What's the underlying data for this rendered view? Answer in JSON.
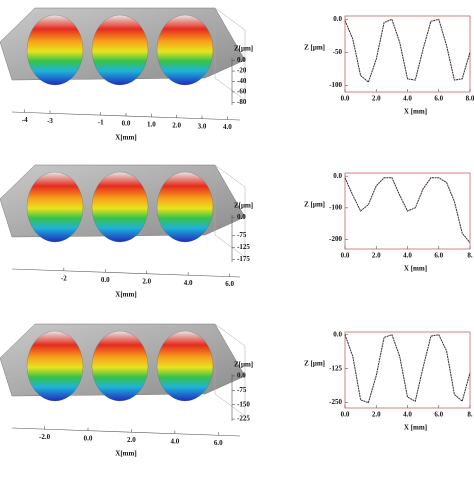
{
  "chart_data": [
    {
      "type": "surface",
      "xlabel": "X[mm]",
      "zlabel": "Z[μm]",
      "xlim": [
        -4.5,
        4.5
      ],
      "zlim": [
        -85,
        5
      ],
      "xticks": [
        {
          "value": -4,
          "label": "-4"
        },
        {
          "value": -3,
          "label": "-3"
        },
        {
          "value": -1,
          "label": "-1"
        },
        {
          "value": 0,
          "label": "0.0"
        },
        {
          "value": 1,
          "label": "1.0"
        },
        {
          "value": 2,
          "label": "2.0"
        },
        {
          "value": 3,
          "label": "3.0"
        },
        {
          "value": 4,
          "label": "4.0"
        }
      ],
      "zticks": [
        {
          "value": 0,
          "label": "0.0"
        },
        -20,
        -40,
        -60,
        -80
      ]
    },
    {
      "type": "line",
      "xlabel": "X [mm]",
      "ylabel": "Z [μm]",
      "xlim": [
        0,
        8
      ],
      "ylim": [
        -110,
        5
      ],
      "xticks": [
        {
          "value": 0,
          "label": "0.0"
        },
        {
          "value": 2,
          "label": "2.0"
        },
        {
          "value": 4,
          "label": "4.0"
        },
        {
          "value": 6,
          "label": "6.0"
        },
        {
          "value": 8,
          "label": "8.0"
        }
      ],
      "yticks": [
        {
          "value": 0,
          "label": "0.0"
        },
        -50,
        -100
      ],
      "x": [
        0,
        0.5,
        1,
        1.5,
        2,
        2.5,
        3,
        3.5,
        4,
        4.5,
        5,
        5.5,
        6,
        6.5,
        7,
        7.5,
        8
      ],
      "values": [
        -2,
        -30,
        -85,
        -95,
        -60,
        -5,
        0,
        -35,
        -90,
        -92,
        -45,
        -3,
        0,
        -40,
        -92,
        -90,
        -50
      ],
      "color": "#3a2a2a"
    },
    {
      "type": "surface",
      "xlabel": "X[mm]",
      "zlabel": "Z[μm]",
      "xlim": [
        -4.5,
        6.5
      ],
      "zlim": [
        -185,
        10
      ],
      "xticks": [
        {
          "value": -2,
          "label": "-2"
        },
        {
          "value": 0,
          "label": "0.0"
        },
        {
          "value": 2,
          "label": "2.0"
        },
        {
          "value": 4,
          "label": "4.0"
        },
        {
          "value": 6,
          "label": "6.0"
        }
      ],
      "zticks": [
        {
          "value": 0,
          "label": "0.0"
        },
        -75,
        -125,
        -175
      ]
    },
    {
      "type": "line",
      "xlabel": "X [mm]",
      "ylabel": "Z [μm]",
      "xlim": [
        0,
        8
      ],
      "ylim": [
        -230,
        10
      ],
      "xticks": [
        {
          "value": 0,
          "label": "0.0"
        },
        {
          "value": 2,
          "label": "2.0"
        },
        {
          "value": 4,
          "label": "4.0"
        },
        {
          "value": 6,
          "label": "6.0"
        },
        {
          "value": 8,
          "label": "8."
        }
      ],
      "yticks": [
        {
          "value": 0,
          "label": "0.0"
        },
        -100,
        -200
      ],
      "x": [
        0,
        0.5,
        1,
        1.5,
        2,
        2.5,
        3,
        3.5,
        4,
        4.5,
        5,
        5.5,
        6,
        6.5,
        7,
        7.5,
        8
      ],
      "values": [
        -5,
        -60,
        -110,
        -90,
        -30,
        -5,
        -5,
        -60,
        -110,
        -100,
        -40,
        -5,
        -5,
        -20,
        -80,
        -180,
        -210
      ],
      "color": "#3a2a2a"
    },
    {
      "type": "surface",
      "xlabel": "X[mm]",
      "zlabel": "Z[μm]",
      "xlim": [
        -3.5,
        7
      ],
      "zlim": [
        -235,
        10
      ],
      "xticks": [
        {
          "value": -2,
          "label": "-2.0"
        },
        {
          "value": 0,
          "label": "0.0"
        },
        {
          "value": 2,
          "label": "2.0"
        },
        {
          "value": 4,
          "label": "4.0"
        },
        {
          "value": 6,
          "label": "6.0"
        }
      ],
      "zticks": [
        {
          "value": 0,
          "label": "0.0"
        },
        -75,
        -150,
        -225
      ]
    },
    {
      "type": "line",
      "xlabel": "X [mm]",
      "ylabel": "Z [μm]",
      "xlim": [
        0,
        8
      ],
      "ylim": [
        -270,
        10
      ],
      "xticks": [
        {
          "value": 0,
          "label": "0.0"
        },
        {
          "value": 2,
          "label": "2.0"
        },
        {
          "value": 4,
          "label": "4.0"
        },
        {
          "value": 6,
          "label": "6.0"
        },
        {
          "value": 8,
          "label": "8."
        }
      ],
      "yticks": [
        {
          "value": 0,
          "label": "0.0"
        },
        -125,
        -250
      ],
      "x": [
        0,
        0.5,
        1,
        1.5,
        2,
        2.5,
        3,
        3.5,
        4,
        4.5,
        5,
        5.5,
        6,
        6.5,
        7,
        7.5,
        8
      ],
      "values": [
        0,
        -80,
        -240,
        -250,
        -150,
        -10,
        0,
        -80,
        -230,
        -245,
        -120,
        -5,
        0,
        -60,
        -220,
        -245,
        -140
      ],
      "color": "#3a2a2a"
    }
  ]
}
